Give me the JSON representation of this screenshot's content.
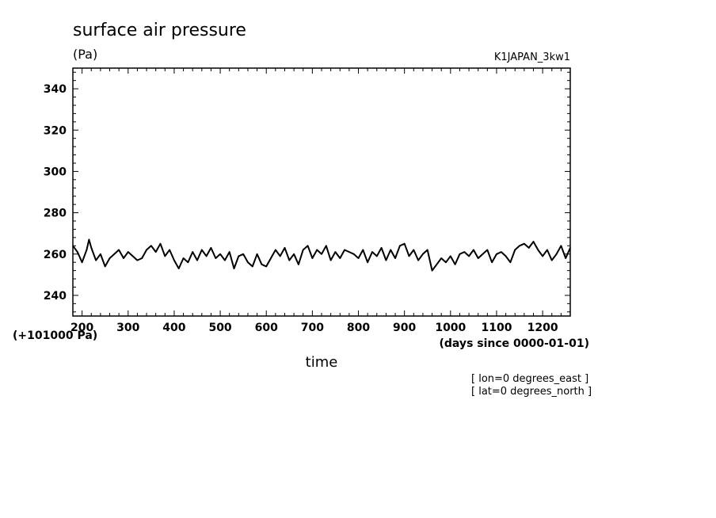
{
  "chart_data": {
    "type": "line",
    "title": "surface air pressure",
    "units": "(Pa)",
    "run_id": "K1JAPAN_3kw1",
    "xlabel": "time",
    "x_unit_note": "(days since 0000-01-01)",
    "y_offset_note": "(+101000 Pa)",
    "annotations": [
      "[ lon=0 degrees_east ]",
      "[ lat=0 degrees_north ]"
    ],
    "xlim": [
      180,
      1260
    ],
    "ylim": [
      230,
      350
    ],
    "x_ticks": [
      200,
      300,
      400,
      500,
      600,
      700,
      800,
      900,
      1000,
      1100,
      1200
    ],
    "y_ticks": [
      240,
      260,
      280,
      300,
      320,
      340
    ],
    "grid": false,
    "series": [
      {
        "color": "#000000",
        "x": [
          180,
          190,
          200,
          210,
          215,
          220,
          230,
          240,
          250,
          260,
          270,
          280,
          290,
          300,
          310,
          320,
          330,
          340,
          350,
          360,
          370,
          380,
          390,
          400,
          410,
          420,
          430,
          440,
          450,
          460,
          470,
          480,
          490,
          500,
          510,
          520,
          530,
          540,
          550,
          560,
          570,
          580,
          590,
          600,
          610,
          620,
          630,
          640,
          650,
          660,
          670,
          680,
          690,
          700,
          710,
          720,
          730,
          740,
          750,
          760,
          770,
          780,
          790,
          800,
          810,
          820,
          830,
          840,
          850,
          860,
          870,
          880,
          890,
          900,
          910,
          920,
          930,
          940,
          950,
          960,
          970,
          980,
          990,
          1000,
          1010,
          1020,
          1030,
          1040,
          1050,
          1060,
          1070,
          1080,
          1090,
          1100,
          1110,
          1120,
          1130,
          1140,
          1150,
          1160,
          1170,
          1180,
          1190,
          1200,
          1210,
          1220,
          1230,
          1240,
          1250,
          1260
        ],
        "y": [
          264,
          261,
          256,
          262,
          267,
          263,
          257,
          260,
          254,
          258,
          260,
          262,
          258,
          261,
          259,
          257,
          258,
          262,
          264,
          261,
          265,
          259,
          262,
          257,
          253,
          258,
          256,
          261,
          257,
          262,
          259,
          263,
          258,
          260,
          257,
          261,
          253,
          259,
          260,
          256,
          254,
          260,
          255,
          254,
          258,
          262,
          259,
          263,
          257,
          260,
          255,
          262,
          264,
          258,
          262,
          260,
          264,
          257,
          261,
          258,
          262,
          261,
          260,
          258,
          262,
          256,
          261,
          259,
          263,
          257,
          262,
          258,
          264,
          265,
          259,
          262,
          257,
          260,
          262,
          252,
          255,
          258,
          256,
          259,
          255,
          260,
          261,
          259,
          262,
          258,
          260,
          262,
          256,
          260,
          261,
          259,
          256,
          262,
          264,
          265,
          263,
          266,
          262,
          259,
          262,
          257,
          260,
          264,
          258,
          263
        ]
      }
    ]
  }
}
